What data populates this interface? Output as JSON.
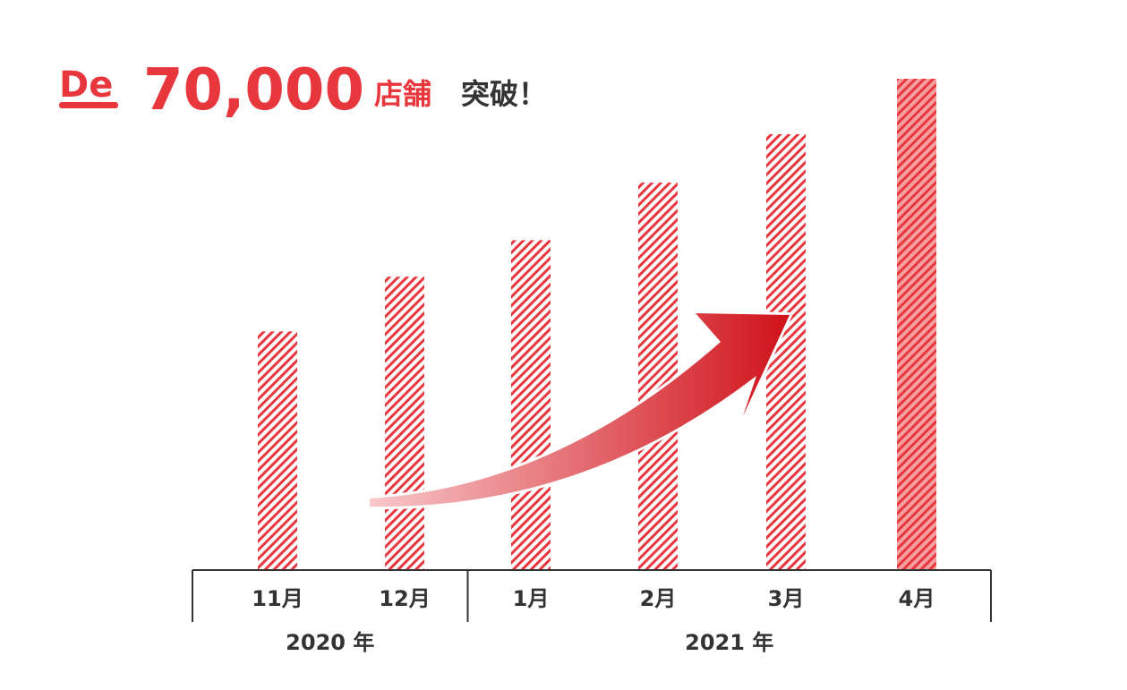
{
  "chart_data": {
    "type": "bar",
    "title": {
      "logo": "De",
      "number": "70,000",
      "unit": "店舗",
      "suffix": "突破！"
    },
    "categories": [
      "11月",
      "12月",
      "1月",
      "2月",
      "3月",
      "4月"
    ],
    "values": [
      34000,
      41800,
      47000,
      55200,
      62100,
      70000
    ],
    "color": "#e8363d",
    "highlight_index": 5,
    "highlight_color": "#f5a0a0",
    "groups": [
      {
        "label": "2020 年",
        "size": 2
      },
      {
        "label": "2021 年",
        "size": 4
      }
    ],
    "ylim": [
      0,
      70000
    ]
  }
}
